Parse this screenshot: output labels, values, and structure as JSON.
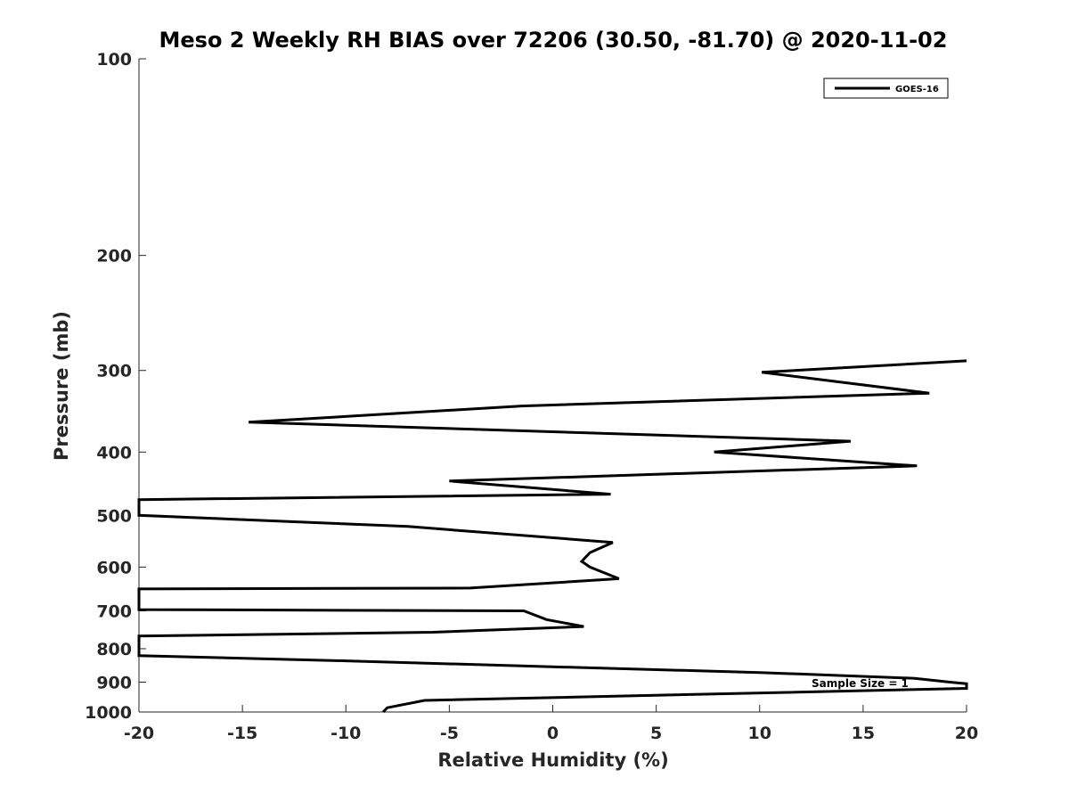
{
  "chart_data": {
    "type": "line",
    "title": "Meso 2 Weekly RH BIAS over 72206 (30.50, -81.70) @ 2020-11-02",
    "xlabel": "Relative Humidity (%)",
    "ylabel": "Pressure (mb)",
    "xlim": [
      -20,
      20
    ],
    "ylim": [
      100,
      1000
    ],
    "y_scale": "log",
    "y_reversed": true,
    "x_ticks": [
      -20,
      -15,
      -10,
      -5,
      0,
      5,
      10,
      15,
      20
    ],
    "y_ticks": [
      100,
      200,
      300,
      400,
      500,
      600,
      700,
      800,
      900,
      1000
    ],
    "grid": false,
    "legend_position": "top-right",
    "series": [
      {
        "name": "GOES-16",
        "color": "#000000",
        "x": [
          -8.2,
          -8.0,
          -6.2,
          20,
          20,
          19.2,
          17.5,
          10,
          -1.5,
          -10,
          -20,
          -20,
          -5.8,
          1.5,
          -0.3,
          -1.4,
          -20,
          -20,
          -4,
          3.2,
          1.8,
          1.4,
          1.8,
          2.9,
          -7,
          -20,
          -20,
          2.8,
          -5,
          17.6,
          7.8,
          14.4,
          -14.7,
          -1.5,
          18.2,
          10.1,
          20
        ],
        "y": [
          1000,
          985,
          960,
          920,
          905,
          900,
          888,
          870,
          850,
          835,
          820,
          765,
          755,
          740,
          722,
          700,
          697,
          648,
          646,
          625,
          600,
          588,
          570,
          550,
          520,
          500,
          473,
          464,
          443,
          420,
          400,
          385,
          360,
          340,
          325,
          302,
          290
        ]
      }
    ],
    "annotations": [
      "Sample Size = 1"
    ]
  }
}
